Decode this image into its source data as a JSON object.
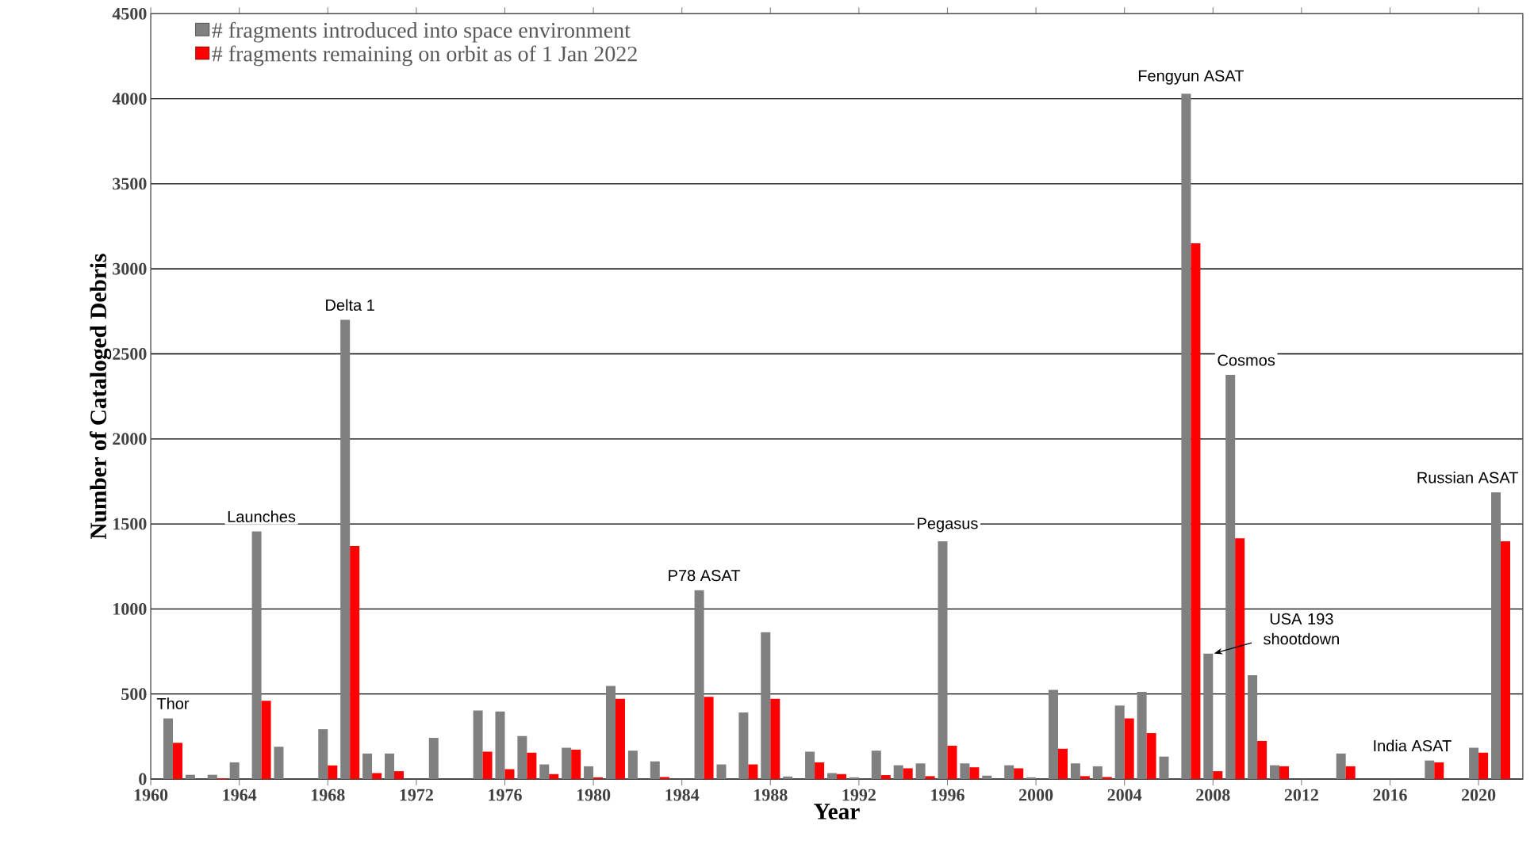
{
  "chart_data": {
    "type": "bar",
    "xlabel": "Year",
    "ylabel": "Number of Cataloged Debris",
    "x": [
      1961,
      1962,
      1963,
      1964,
      1965,
      1966,
      1967,
      1968,
      1969,
      1970,
      1971,
      1972,
      1973,
      1974,
      1975,
      1976,
      1977,
      1978,
      1979,
      1980,
      1981,
      1982,
      1983,
      1984,
      1985,
      1986,
      1987,
      1988,
      1989,
      1990,
      1991,
      1992,
      1993,
      1994,
      1995,
      1996,
      1997,
      1998,
      1999,
      2000,
      2001,
      2002,
      2003,
      2004,
      2005,
      2006,
      2007,
      2008,
      2009,
      2010,
      2011,
      2012,
      2013,
      2014,
      2015,
      2016,
      2017,
      2018,
      2019,
      2020,
      2021
    ],
    "series": [
      {
        "name": "# fragments introduced into space environment",
        "color": "#808080",
        "values": [
          357,
          25,
          25,
          98,
          1456,
          190,
          0,
          293,
          2700,
          150,
          150,
          0,
          242,
          0,
          403,
          397,
          253,
          86,
          184,
          75,
          547,
          167,
          104,
          0,
          1110,
          86,
          391,
          863,
          15,
          161,
          35,
          10,
          167,
          81,
          92,
          1398,
          92,
          20,
          81,
          10,
          524,
          92,
          75,
          432,
          512,
          132,
          4030,
          737,
          2376,
          610,
          81,
          0,
          0,
          150,
          0,
          0,
          0,
          109,
          0,
          184,
          1686
        ]
      },
      {
        "name": "# fragments remaining on orbit as of 1 Jan 2022",
        "color": "#ff0000",
        "values": [
          213,
          0,
          5,
          0,
          460,
          0,
          0,
          80,
          1370,
          35,
          46,
          0,
          0,
          0,
          161,
          58,
          155,
          29,
          173,
          10,
          472,
          0,
          12,
          0,
          483,
          0,
          86,
          472,
          0,
          98,
          29,
          0,
          23,
          63,
          17,
          196,
          69,
          0,
          63,
          0,
          178,
          17,
          12,
          357,
          270,
          0,
          3150,
          46,
          1416,
          224,
          75,
          0,
          0,
          75,
          0,
          0,
          0,
          98,
          0,
          155,
          1398
        ]
      }
    ],
    "xlim": [
      1960,
      2022
    ],
    "xticks": [
      1960,
      1964,
      1968,
      1972,
      1976,
      1980,
      1984,
      1988,
      1992,
      1996,
      2000,
      2004,
      2008,
      2012,
      2016,
      2020
    ],
    "ylim": [
      0,
      4500
    ],
    "yticks": [
      0,
      500,
      1000,
      1500,
      2000,
      2500,
      3000,
      3500,
      4000,
      4500
    ],
    "grid": "y",
    "legend": "top left",
    "annotations": [
      {
        "text": "Thor",
        "x": 1961,
        "y": 357
      },
      {
        "text": "Launches",
        "x": 1965,
        "y": 1456
      },
      {
        "text": "Delta 1",
        "x": 1969,
        "y": 2700
      },
      {
        "text": "P78 ASAT",
        "x": 1985,
        "y": 1110
      },
      {
        "text": "Pegasus",
        "x": 1996,
        "y": 1398
      },
      {
        "text": "USA 193 shootdown",
        "x": 2008,
        "y": 737
      },
      {
        "text": "Fengyun ASAT",
        "x": 2007,
        "y": 4030
      },
      {
        "text": "Cosmos",
        "x": 2009,
        "y": 2376
      },
      {
        "text": "India ASAT",
        "x": 2018,
        "y": 109
      },
      {
        "text": "Russian ASAT",
        "x": 2021,
        "y": 1686
      }
    ]
  }
}
